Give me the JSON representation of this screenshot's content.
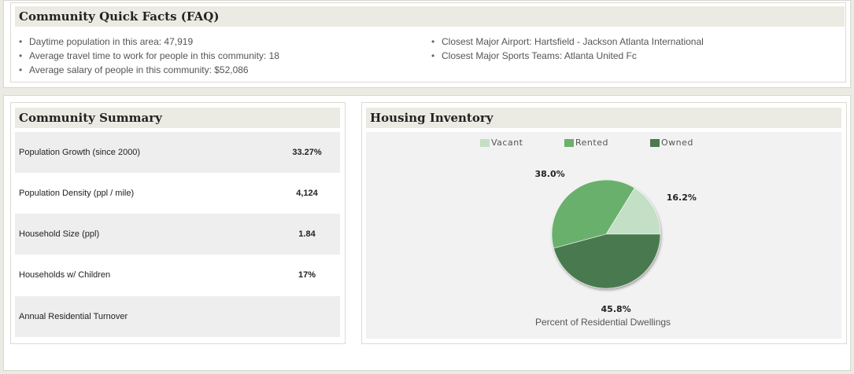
{
  "faq": {
    "title": "Community Quick Facts (FAQ)",
    "left_items": [
      "Daytime population in this area: 47,919",
      "Average travel time to work for people in this community: 18",
      "Average salary of people in this community: $52,086"
    ],
    "right_items": [
      "Closest Major Airport: Hartsfield - Jackson Atlanta International",
      "Closest Major Sports Teams: Atlanta United Fc"
    ]
  },
  "summary": {
    "title": "Community Summary",
    "rows": [
      {
        "label": "Population Growth (since 2000)",
        "value": "33.27%"
      },
      {
        "label": "Population Density (ppl / mile)",
        "value": "4,124"
      },
      {
        "label": "Household Size (ppl)",
        "value": "1.84"
      },
      {
        "label": "Households w/ Children",
        "value": "17%"
      },
      {
        "label": "Annual Residential Turnover",
        "value": ""
      }
    ]
  },
  "housing": {
    "title": "Housing Inventory",
    "caption": "Percent of Residential Dwellings"
  },
  "chart_data": {
    "type": "pie",
    "title": "Housing Inventory",
    "xlabel": "Percent of Residential Dwellings",
    "categories": [
      "Vacant",
      "Rented",
      "Owned"
    ],
    "values": [
      16.2,
      38.0,
      45.8
    ],
    "labels": [
      "16.2%",
      "38.0%",
      "45.8%"
    ],
    "colors": [
      "#c3dfc5",
      "#6bb06d",
      "#4a7a4f"
    ],
    "legend": "top"
  }
}
